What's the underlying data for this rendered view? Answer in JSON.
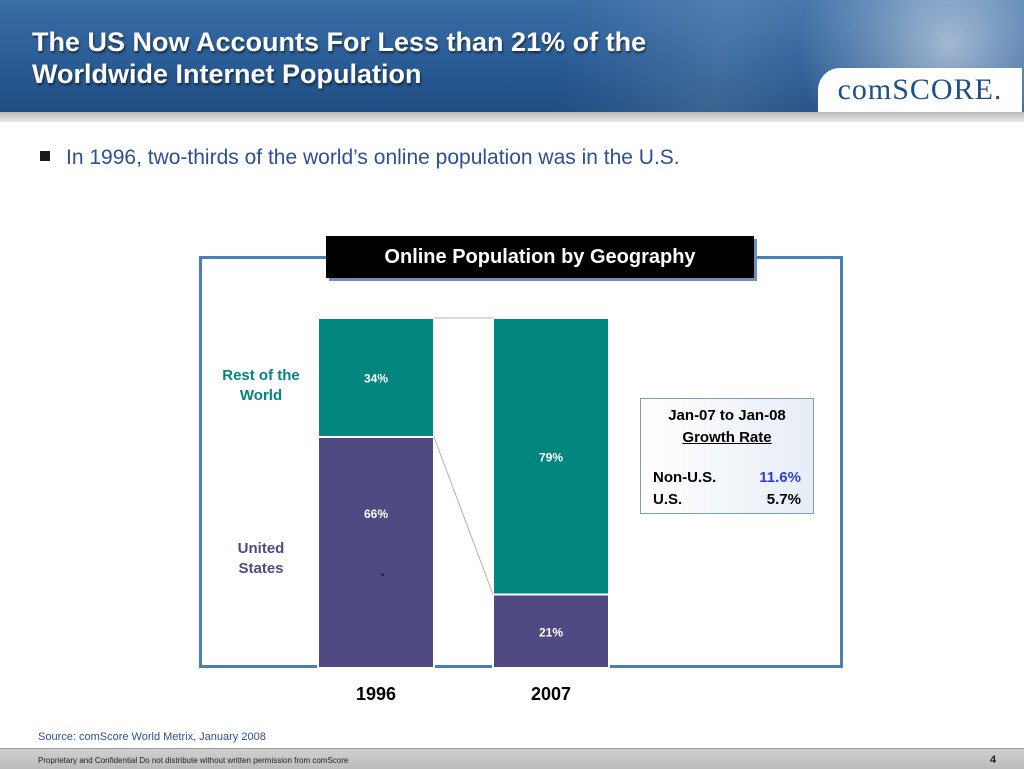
{
  "header": {
    "title": "The US Now Accounts For Less than 21% of the\nWorldwide Internet Population",
    "logo_text": "comSCORE."
  },
  "bullet": {
    "text": "In 1996, two-thirds of the world’s online population was in the U.S."
  },
  "chart_data": {
    "type": "bar",
    "stacked": true,
    "percent": true,
    "title": "Online Population by Geography",
    "categories": [
      "1996",
      "2007"
    ],
    "series": [
      {
        "name": "United States",
        "values": [
          66,
          21
        ],
        "labels": [
          "66%",
          "21%"
        ],
        "color": "#4f4b82"
      },
      {
        "name": "Rest of the World",
        "values": [
          34,
          79
        ],
        "labels": [
          "34%",
          "79%"
        ],
        "color": "#00857f"
      }
    ],
    "ylim": [
      0,
      100
    ],
    "legend_placement": "left",
    "colors": {
      "us": "#4f4b82",
      "row": "#00857f",
      "frame": "#4b7fb0"
    }
  },
  "legend_labels": {
    "row": "Rest of the\nWorld",
    "us": "United\nStates"
  },
  "growth_box": {
    "title": "Jan-07 to Jan-08",
    "subtitle": "Growth Rate",
    "rows": [
      {
        "label": "Non-U.S.",
        "value": "11.6%"
      },
      {
        "label": "U.S.",
        "value": "5.7%"
      }
    ],
    "highlight_color": "#2f3fd6"
  },
  "stray_mark": "`",
  "source": "Source:  comScore World Metrix, January 2008",
  "footer": {
    "text": "Proprietary and Confidential Do not distribute without written permission from comScore",
    "page": "4"
  }
}
